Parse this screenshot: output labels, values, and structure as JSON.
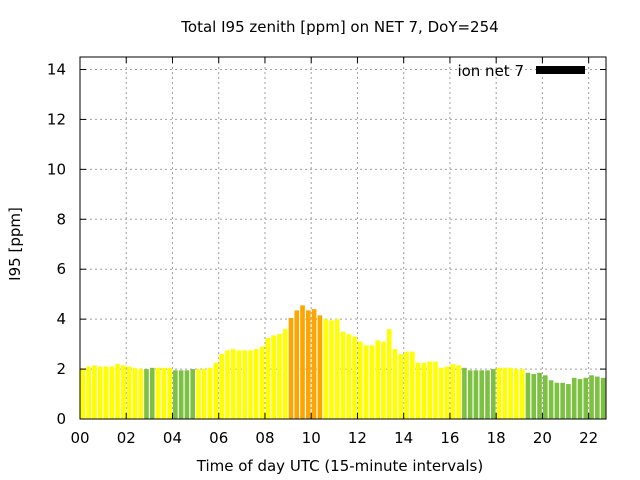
{
  "chart_data": {
    "type": "bar",
    "title": "Total I95 zenith [ppm] on NET 7, DoY=254",
    "xlabel": "Time of day UTC (15-minute intervals)",
    "ylabel": "I95 [ppm]",
    "xlim": [
      0,
      22.75
    ],
    "ylim": [
      0,
      14.5
    ],
    "x_ticks": [
      "00",
      "02",
      "04",
      "06",
      "08",
      "10",
      "12",
      "14",
      "16",
      "18",
      "20",
      "22"
    ],
    "y_ticks": [
      "0",
      "2",
      "4",
      "6",
      "8",
      "10",
      "12",
      "14"
    ],
    "grid": true,
    "legend": {
      "label": "ion net 7",
      "color": "#000000",
      "placement": "top-right"
    },
    "interval_hours": 0.25,
    "colors": {
      "green": "#7dc142",
      "yellow": "#ffff00",
      "orange": "#ffa500"
    },
    "values": [
      2.0,
      2.1,
      2.15,
      2.1,
      2.1,
      2.1,
      2.2,
      2.15,
      2.1,
      2.05,
      2.0,
      2.0,
      2.05,
      2.05,
      2.05,
      2.05,
      1.95,
      1.95,
      1.95,
      2.0,
      2.0,
      2.0,
      2.05,
      2.25,
      2.6,
      2.75,
      2.8,
      2.75,
      2.75,
      2.75,
      2.8,
      2.9,
      3.25,
      3.35,
      3.4,
      3.6,
      4.05,
      4.35,
      4.55,
      4.35,
      4.4,
      4.15,
      4.0,
      3.95,
      4.0,
      3.5,
      3.4,
      3.3,
      3.1,
      2.95,
      2.95,
      3.15,
      3.1,
      3.6,
      2.8,
      2.6,
      2.7,
      2.7,
      2.25,
      2.25,
      2.3,
      2.3,
      2.05,
      2.1,
      2.2,
      2.15,
      2.05,
      1.95,
      1.95,
      1.95,
      1.95,
      2.0,
      2.05,
      2.05,
      2.05,
      2.0,
      2.0,
      1.85,
      1.8,
      1.85,
      1.75,
      1.55,
      1.45,
      1.45,
      1.4,
      1.65,
      1.6,
      1.65,
      1.75,
      1.7,
      1.65
    ],
    "bar_colors": [
      "yellow",
      "yellow",
      "yellow",
      "yellow",
      "yellow",
      "yellow",
      "yellow",
      "yellow",
      "yellow",
      "yellow",
      "yellow",
      "green",
      "green",
      "yellow",
      "yellow",
      "yellow",
      "green",
      "green",
      "green",
      "green",
      "yellow",
      "yellow",
      "yellow",
      "yellow",
      "yellow",
      "yellow",
      "yellow",
      "yellow",
      "yellow",
      "yellow",
      "yellow",
      "yellow",
      "yellow",
      "yellow",
      "yellow",
      "yellow",
      "orange",
      "orange",
      "orange",
      "orange",
      "orange",
      "orange",
      "yellow",
      "yellow",
      "yellow",
      "yellow",
      "yellow",
      "yellow",
      "yellow",
      "yellow",
      "yellow",
      "yellow",
      "yellow",
      "yellow",
      "yellow",
      "yellow",
      "yellow",
      "yellow",
      "yellow",
      "yellow",
      "yellow",
      "yellow",
      "yellow",
      "yellow",
      "yellow",
      "yellow",
      "green",
      "green",
      "green",
      "green",
      "green",
      "green",
      "yellow",
      "yellow",
      "yellow",
      "yellow",
      "yellow",
      "green",
      "green",
      "green",
      "green",
      "green",
      "green",
      "green",
      "green",
      "green",
      "green",
      "green",
      "green",
      "green",
      "green"
    ]
  }
}
